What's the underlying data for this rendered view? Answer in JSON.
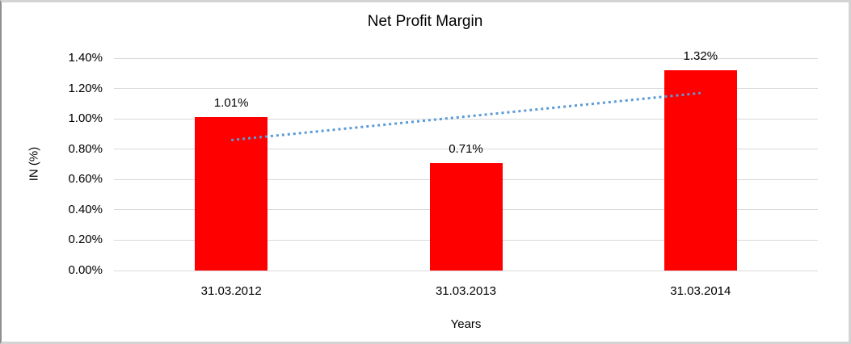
{
  "chart_data": {
    "type": "bar",
    "title": "Net Profit Margin",
    "xlabel": "Years",
    "ylabel": "IN (%)",
    "categories": [
      "31.03.2012",
      "31.03.2013",
      "31.03.2014"
    ],
    "values": [
      1.01,
      0.71,
      1.32
    ],
    "value_labels": [
      "1.01%",
      "0.71%",
      "1.32%"
    ],
    "ylim": [
      0,
      1.4
    ],
    "yticks": {
      "values": [
        0,
        0.2,
        0.4,
        0.6,
        0.8,
        1.0,
        1.2,
        1.4
      ],
      "labels": [
        "0.00%",
        "0.20%",
        "0.40%",
        "0.60%",
        "0.80%",
        "1.00%",
        "1.20%",
        "1.40%"
      ]
    },
    "grid": true,
    "legend": "none",
    "bar_color": "#FF0000",
    "gridline_color": "#D9D9D9",
    "trendline": {
      "type": "linear",
      "style": "dotted",
      "color": "#5B9BD5",
      "start_value": 0.86,
      "end_value": 1.17
    }
  }
}
